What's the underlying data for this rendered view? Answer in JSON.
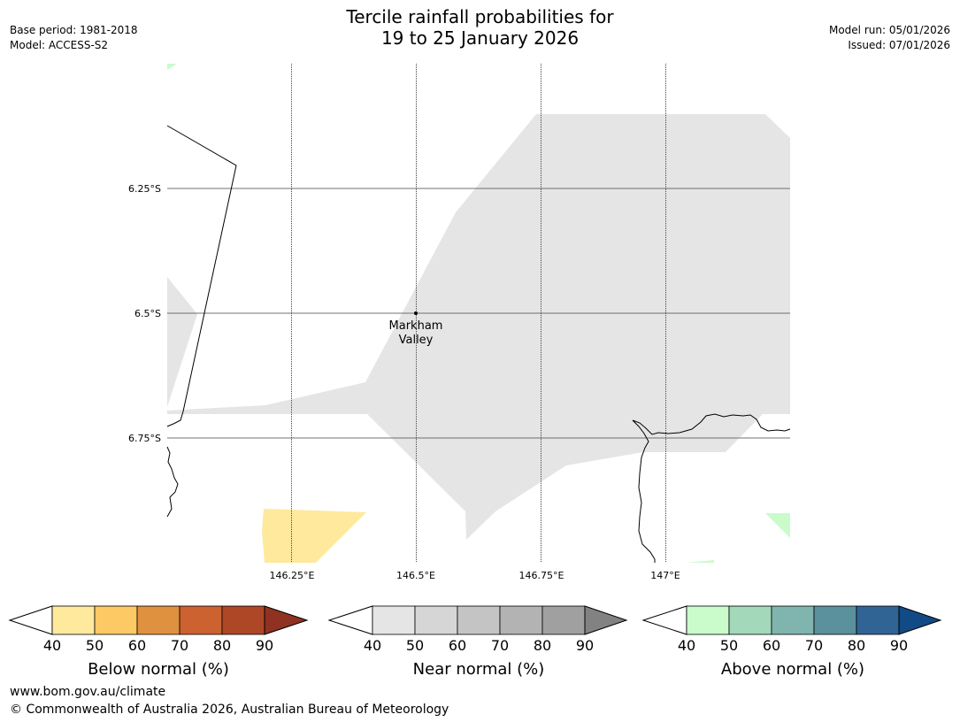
{
  "title": {
    "line1": "Tercile rainfall probabilities for",
    "line2": "19 to 25 January 2026"
  },
  "meta_left": {
    "base_period": "Base period: 1981-2018",
    "model": "Model: ACCESS-S2"
  },
  "meta_right": {
    "model_run": "Model run: 05/01/2026",
    "issued": "Issued: 07/01/2026"
  },
  "map": {
    "lat_labels": [
      "6.25°S",
      "6.5°S",
      "6.75°S"
    ],
    "lon_labels": [
      "146.25°E",
      "146.5°E",
      "146.75°E",
      "147°E"
    ],
    "place": {
      "name_line1": "Markham",
      "name_line2": "Valley"
    }
  },
  "colorbars": [
    {
      "title": "Below normal (%)",
      "ticks": [
        "40",
        "50",
        "60",
        "70",
        "80",
        "90"
      ],
      "colors": [
        "#fee99d",
        "#fdc965",
        "#e0913f",
        "#cb6230",
        "#ae4725",
        "#903222"
      ]
    },
    {
      "title": "Near normal (%)",
      "ticks": [
        "40",
        "50",
        "60",
        "70",
        "80",
        "90"
      ],
      "colors": [
        "#e5e5e5",
        "#d6d6d6",
        "#c4c4c4",
        "#b3b3b3",
        "#a0a0a0",
        "#828282"
      ]
    },
    {
      "title": "Above normal (%)",
      "ticks": [
        "40",
        "50",
        "60",
        "70",
        "80",
        "90"
      ],
      "colors": [
        "#c9fbcb",
        "#a3d8bb",
        "#80b4ae",
        "#5b909d",
        "#2f6495",
        "#114a84"
      ]
    }
  ],
  "footer": {
    "url": "www.bom.gov.au/climate",
    "copyright": "© Commonwealth of Australia 2026, Australian Bureau of Meteorology"
  }
}
